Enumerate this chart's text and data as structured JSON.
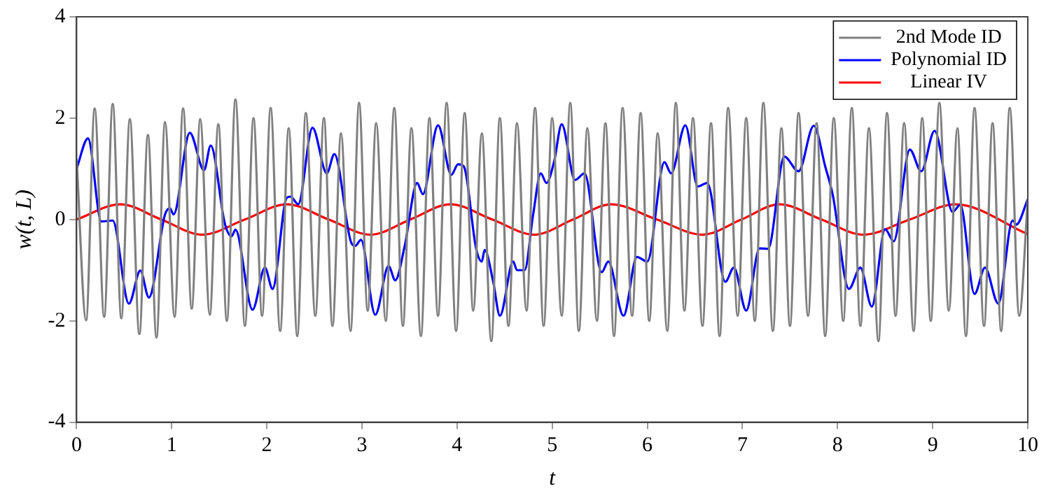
{
  "chart_data": {
    "type": "line",
    "xlabel": "t",
    "ylabel": "w(t, L)",
    "xlim": [
      0,
      10
    ],
    "ylim": [
      -4,
      4
    ],
    "xticks": [
      0,
      1,
      2,
      3,
      4,
      5,
      6,
      7,
      8,
      9,
      10
    ],
    "yticks": [
      -4,
      -2,
      0,
      2,
      4
    ],
    "grid": false,
    "legend": "top right",
    "marker": "none",
    "line_style": "solid",
    "series": [
      {
        "name": "2nd Mode ID",
        "color": "#808080",
        "x": [
          0,
          0.1,
          0.19,
          0.29,
          0.38,
          0.47,
          0.56,
          0.66,
          0.75,
          0.84,
          0.93,
          1.03,
          1.12,
          1.21,
          1.3,
          1.4,
          1.49,
          1.58,
          1.67,
          1.77,
          1.86,
          1.95,
          2.04,
          2.14,
          2.23,
          2.32,
          2.41,
          2.51,
          2.6,
          2.69,
          2.78,
          2.88,
          2.97,
          3.06,
          3.15,
          3.25,
          3.34,
          3.43,
          3.52,
          3.62,
          3.71,
          3.8,
          3.89,
          3.99,
          4.08,
          4.17,
          4.26,
          4.36,
          4.45,
          4.54,
          4.63,
          4.73,
          4.82,
          4.91,
          5.0,
          5.1,
          5.19,
          5.28,
          5.37,
          5.47,
          5.56,
          5.65,
          5.74,
          5.84,
          5.93,
          6.02,
          6.11,
          6.21,
          6.3,
          6.39,
          6.48,
          6.58,
          6.67,
          6.76,
          6.85,
          6.95,
          7.04,
          7.13,
          7.22,
          7.32,
          7.41,
          7.5,
          7.59,
          7.69,
          7.78,
          7.87,
          7.96,
          8.06,
          8.15,
          8.24,
          8.33,
          8.43,
          8.52,
          8.61,
          8.7,
          8.8,
          8.89,
          8.98,
          9.07,
          9.17,
          9.26,
          9.35,
          9.44,
          9.54,
          9.63,
          9.72,
          9.81,
          9.91,
          10
        ],
        "values": [
          1.2,
          -1.99,
          2.19,
          -1.92,
          2.28,
          -1.95,
          1.98,
          -2.26,
          1.67,
          -2.33,
          1.92,
          -1.92,
          2.19,
          -1.76,
          1.98,
          -1.88,
          1.88,
          -2.0,
          2.37,
          -2.1,
          2.0,
          -1.9,
          2.2,
          -2.2,
          1.8,
          -2.3,
          2.1,
          -1.9,
          2.0,
          -2.1,
          1.7,
          -2.2,
          2.3,
          -1.8,
          1.9,
          -2.0,
          2.2,
          -2.1,
          1.8,
          -2.3,
          2.0,
          -1.9,
          2.3,
          -2.2,
          2.1,
          -1.8,
          1.7,
          -2.4,
          2.0,
          -2.1,
          1.9,
          -1.8,
          2.2,
          -2.1,
          2.0,
          -1.9,
          2.3,
          -2.2,
          1.8,
          -2.0,
          1.9,
          -2.3,
          2.2,
          -1.9,
          2.1,
          -2.0,
          1.7,
          -2.2,
          2.3,
          -1.8,
          2.0,
          -2.1,
          1.9,
          -2.3,
          2.2,
          -1.9,
          2.0,
          -2.0,
          2.3,
          -2.2,
          1.8,
          -2.1,
          2.1,
          -1.9,
          1.9,
          -2.3,
          2.0,
          -2.0,
          2.2,
          -2.1,
          1.8,
          -2.4,
          2.1,
          -1.9,
          1.9,
          -2.2,
          2.0,
          -2.0,
          2.3,
          -1.8,
          1.8,
          -2.3,
          2.2,
          -2.1,
          1.9,
          -2.2,
          2.2,
          -1.9,
          0.4
        ]
      },
      {
        "name": "Polynomial ID",
        "color": "#0000ff",
        "x": [
          0,
          0.12,
          0.26,
          0.38,
          0.55,
          0.67,
          0.76,
          0.93,
          0.98,
          1.02,
          1.19,
          1.34,
          1.41,
          1.56,
          1.63,
          1.67,
          1.85,
          1.98,
          2.06,
          2.21,
          2.25,
          2.33,
          2.48,
          2.63,
          2.71,
          2.89,
          2.93,
          2.99,
          3.14,
          3.28,
          3.35,
          3.45,
          3.58,
          3.64,
          3.8,
          3.94,
          4.01,
          4.07,
          4.2,
          4.26,
          4.29,
          4.38,
          4.45,
          4.59,
          4.63,
          4.71,
          4.8,
          4.88,
          4.94,
          5.02,
          5.1,
          5.24,
          5.34,
          5.52,
          5.59,
          5.75,
          5.89,
          6.0,
          6.18,
          6.25,
          6.4,
          6.53,
          6.63,
          6.82,
          6.91,
          7.04,
          7.18,
          7.27,
          7.44,
          7.59,
          7.75,
          7.87,
          7.95,
          8.12,
          8.24,
          8.36,
          8.5,
          8.59,
          8.76,
          8.88,
          9.02,
          9.21,
          9.29,
          9.44,
          9.55,
          9.69,
          9.84,
          9.88,
          10
        ],
        "values": [
          1.0,
          1.6,
          -0.04,
          -0.02,
          -1.66,
          -1.01,
          -1.54,
          0.1,
          0.22,
          0.1,
          1.71,
          0.97,
          1.46,
          -0.09,
          -0.33,
          -0.2,
          -1.78,
          -0.95,
          -1.37,
          0.43,
          0.45,
          0.3,
          1.81,
          0.91,
          1.29,
          -0.47,
          -0.52,
          -0.4,
          -1.88,
          -0.92,
          -1.2,
          -0.52,
          0.72,
          0.5,
          1.86,
          0.88,
          1.09,
          1.05,
          -0.57,
          -0.83,
          -0.6,
          -1.23,
          -1.9,
          -0.83,
          -1.0,
          -1.0,
          0.1,
          0.91,
          0.72,
          1.14,
          1.88,
          0.78,
          0.91,
          -1.04,
          -0.83,
          -1.9,
          -0.74,
          -0.83,
          1.13,
          0.91,
          1.86,
          0.65,
          0.72,
          -1.23,
          -0.95,
          -1.8,
          -0.57,
          -0.58,
          1.24,
          0.95,
          1.85,
          1.05,
          0.48,
          -1.37,
          -0.95,
          -1.72,
          -0.19,
          -0.43,
          1.38,
          0.95,
          1.75,
          0.15,
          0.29,
          -1.47,
          -0.95,
          -1.66,
          -0.02,
          -0.1,
          0.4
        ]
      },
      {
        "name": "Linear IV",
        "color": "#ff0000",
        "x": [
          0,
          0.46,
          0.89,
          1.32,
          1.77,
          2.21,
          2.65,
          3.09,
          3.51,
          3.93,
          4.37,
          4.81,
          5.22,
          5.62,
          6.1,
          6.58,
          6.99,
          7.39,
          7.83,
          8.27,
          8.76,
          9.24,
          10
        ],
        "values": [
          0,
          0.3,
          0,
          -0.3,
          0,
          0.3,
          0,
          -0.3,
          0,
          0.3,
          0,
          -0.3,
          0,
          0.3,
          0,
          -0.3,
          0,
          0.3,
          0,
          -0.3,
          0,
          0.3,
          -0.29
        ]
      }
    ]
  }
}
